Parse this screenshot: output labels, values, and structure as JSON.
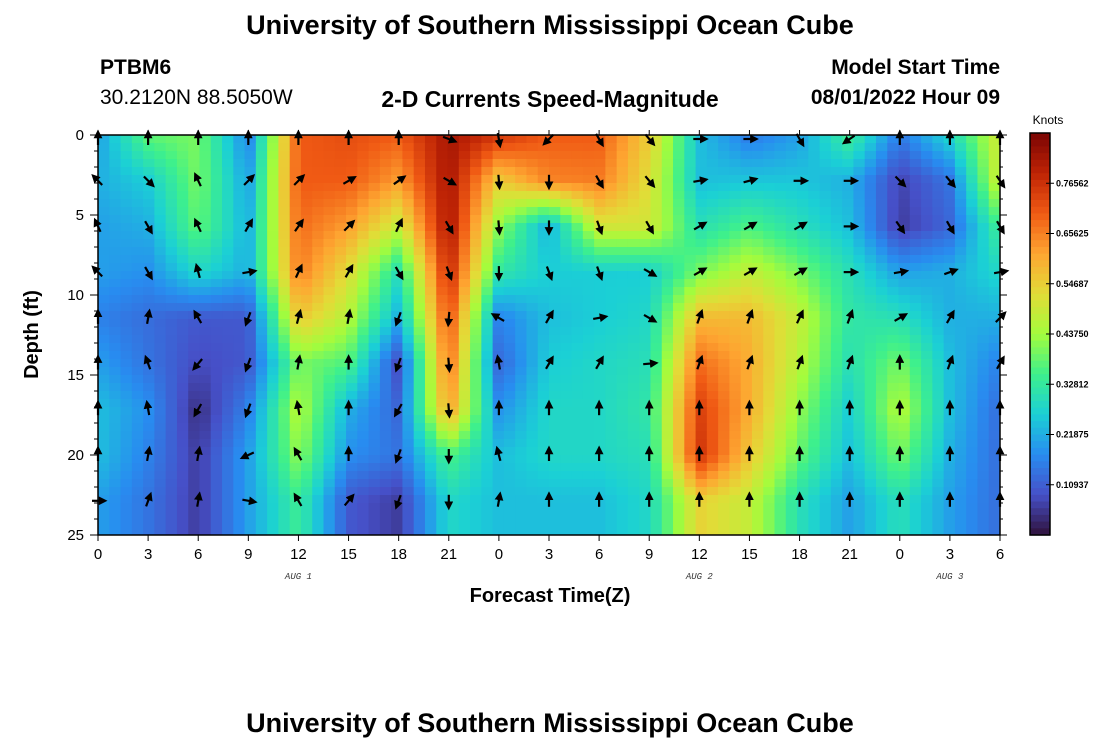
{
  "page": {
    "title": "University of Southern Mississippi Ocean Cube",
    "station": "PTBM6",
    "location": "30.2120N  88.5050W",
    "product": "2-D Currents Speed-Magnitude",
    "model_label": "Model Start Time",
    "model_time": "08/01/2022 Hour 09",
    "footer_title": "University of Southern Mississippi Ocean Cube"
  },
  "chart_data": {
    "type": "heatmap",
    "title": "2-D Currents Speed-Magnitude",
    "xlabel": "Forecast Time(Z)",
    "ylabel": "Depth (ft)",
    "x_tick_labels": [
      "0",
      "3",
      "6",
      "9",
      "12",
      "15",
      "18",
      "21",
      "0",
      "3",
      "6",
      "9",
      "12",
      "15",
      "18",
      "21",
      "0",
      "3",
      "6"
    ],
    "x_hours_from_start": [
      0,
      3,
      6,
      9,
      12,
      15,
      18,
      21,
      24,
      27,
      30,
      33,
      36,
      39,
      42,
      45,
      48,
      51,
      54
    ],
    "date_labels": [
      {
        "label": "AUG 1",
        "hour": 12
      },
      {
        "label": "AUG 2",
        "hour": 36
      },
      {
        "label": "AUG 3",
        "hour": 51
      }
    ],
    "y_ticks": [
      0,
      5,
      10,
      15,
      20,
      25
    ],
    "ylim": [
      25,
      0
    ],
    "colorbar": {
      "units": "Knots",
      "min": 0,
      "max": 0.875,
      "tick_labels": [
        "0.76562",
        "0.65625",
        "0.54687",
        "0.43750",
        "0.32812",
        "0.21875",
        "0.10937"
      ],
      "tick_values": [
        0.76562,
        0.65625,
        0.54687,
        0.4375,
        0.32812,
        0.21875,
        0.10937
      ]
    },
    "depth_levels_ft": [
      0,
      2.86,
      5.71,
      8.57,
      11.43,
      14.29,
      17.14,
      20,
      22.86
    ],
    "speed_knots": [
      [
        0.2,
        0.38,
        0.4,
        0.16,
        0.7,
        0.72,
        0.7,
        0.82,
        0.76,
        0.7,
        0.7,
        0.55,
        0.24,
        0.15,
        0.2,
        0.35,
        0.15,
        0.28,
        0.5
      ],
      [
        0.22,
        0.26,
        0.4,
        0.2,
        0.7,
        0.7,
        0.62,
        0.82,
        0.55,
        0.65,
        0.66,
        0.52,
        0.24,
        0.25,
        0.25,
        0.22,
        0.07,
        0.14,
        0.5
      ],
      [
        0.2,
        0.22,
        0.38,
        0.22,
        0.68,
        0.62,
        0.48,
        0.82,
        0.42,
        0.22,
        0.5,
        0.5,
        0.3,
        0.36,
        0.3,
        0.24,
        0.06,
        0.12,
        0.35
      ],
      [
        0.2,
        0.18,
        0.28,
        0.22,
        0.66,
        0.52,
        0.3,
        0.78,
        0.32,
        0.26,
        0.26,
        0.26,
        0.4,
        0.48,
        0.4,
        0.3,
        0.2,
        0.22,
        0.28
      ],
      [
        0.16,
        0.13,
        0.1,
        0.1,
        0.56,
        0.46,
        0.22,
        0.72,
        0.16,
        0.24,
        0.26,
        0.28,
        0.58,
        0.58,
        0.48,
        0.32,
        0.3,
        0.22,
        0.22
      ],
      [
        0.2,
        0.14,
        0.08,
        0.1,
        0.4,
        0.36,
        0.08,
        0.68,
        0.12,
        0.26,
        0.28,
        0.3,
        0.68,
        0.6,
        0.46,
        0.3,
        0.4,
        0.24,
        0.16
      ],
      [
        0.24,
        0.18,
        0.04,
        0.16,
        0.46,
        0.22,
        0.12,
        0.62,
        0.18,
        0.28,
        0.28,
        0.32,
        0.74,
        0.6,
        0.42,
        0.26,
        0.46,
        0.24,
        0.13
      ],
      [
        0.24,
        0.16,
        0.06,
        0.2,
        0.42,
        0.18,
        0.14,
        0.36,
        0.24,
        0.28,
        0.28,
        0.3,
        0.76,
        0.56,
        0.38,
        0.24,
        0.4,
        0.22,
        0.13
      ],
      [
        0.2,
        0.14,
        0.06,
        0.2,
        0.34,
        0.1,
        0.06,
        0.28,
        0.24,
        0.24,
        0.24,
        0.28,
        0.54,
        0.48,
        0.3,
        0.2,
        0.3,
        0.2,
        0.13
      ]
    ],
    "direction_deg": [
      [
        0,
        0,
        0,
        0,
        0,
        0,
        0,
        110,
        170,
        225,
        150,
        140,
        90,
        90,
        150,
        235,
        0,
        0,
        0
      ],
      [
        315,
        135,
        335,
        45,
        45,
        60,
        55,
        120,
        175,
        180,
        150,
        140,
        80,
        75,
        90,
        90,
        135,
        140,
        145
      ],
      [
        335,
        150,
        335,
        30,
        35,
        45,
        25,
        150,
        175,
        180,
        160,
        150,
        60,
        60,
        60,
        90,
        145,
        150,
        150
      ],
      [
        315,
        150,
        345,
        80,
        25,
        30,
        150,
        160,
        180,
        160,
        160,
        120,
        60,
        60,
        60,
        90,
        80,
        70,
        80
      ],
      [
        0,
        10,
        330,
        200,
        15,
        10,
        200,
        185,
        300,
        30,
        80,
        120,
        20,
        20,
        25,
        20,
        60,
        30,
        45
      ],
      [
        0,
        340,
        220,
        200,
        10,
        0,
        200,
        175,
        350,
        30,
        30,
        85,
        20,
        20,
        20,
        20,
        0,
        20,
        30
      ],
      [
        0,
        350,
        210,
        200,
        350,
        0,
        210,
        175,
        0,
        0,
        0,
        0,
        0,
        0,
        0,
        0,
        0,
        0,
        0
      ],
      [
        0,
        10,
        10,
        245,
        330,
        0,
        200,
        180,
        345,
        0,
        0,
        0,
        0,
        0,
        0,
        0,
        0,
        0,
        0
      ],
      [
        90,
        20,
        10,
        100,
        330,
        40,
        200,
        180,
        10,
        0,
        0,
        0,
        0,
        0,
        0,
        0,
        0,
        0,
        0
      ]
    ]
  }
}
